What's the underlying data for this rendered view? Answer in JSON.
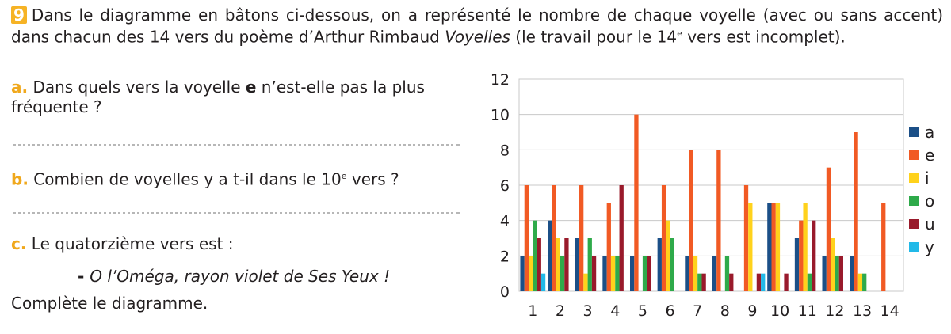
{
  "exercise": {
    "number": "9",
    "intro_before": "Dans le diagramme en bâtons ci-dessous, on a représenté le nombre de chaque voyelle (avec ou sans accent) dans chacun des 14 vers du poème d’Arthur Rimbaud ",
    "intro_title": "Voyelles",
    "intro_middle": " (le travail pour le 14",
    "intro_sup": "e",
    "intro_after": " vers est incomplet).",
    "q_a_letter": "a.",
    "q_a_before": " Dans quels vers la voyelle ",
    "q_a_bold": "e",
    "q_a_after": " n’est-elle pas la plus fréquente ?",
    "q_b_letter": "b.",
    "q_b_before": " Combien de voyelles y a t-il dans le 10",
    "q_b_sup": "e",
    "q_b_after": " vers ?",
    "q_c_letter": "c.",
    "q_c_text": " Le quatorzième vers est :",
    "verse_dash": "- ",
    "verse": "O l’Oméga, rayon violet de Ses Yeux !",
    "final": "Complète le diagramme."
  },
  "chart_data": {
    "type": "bar",
    "categories": [
      "1",
      "2",
      "3",
      "4",
      "5",
      "6",
      "7",
      "8",
      "9",
      "10",
      "11",
      "12",
      "13",
      "14"
    ],
    "series": [
      {
        "name": "a",
        "color": "#1b4f87",
        "values": [
          2,
          4,
          3,
          2,
          2,
          3,
          2,
          2,
          0,
          5,
          3,
          2,
          2,
          0
        ]
      },
      {
        "name": "e",
        "color": "#f15a24",
        "values": [
          6,
          6,
          6,
          5,
          10,
          6,
          8,
          8,
          6,
          5,
          4,
          7,
          9,
          5
        ]
      },
      {
        "name": "i",
        "color": "#ffd21c",
        "values": [
          2,
          3,
          1,
          2,
          0,
          4,
          2,
          0,
          5,
          5,
          5,
          3,
          1,
          0
        ]
      },
      {
        "name": "o",
        "color": "#2eaa4a",
        "values": [
          4,
          2,
          3,
          2,
          2,
          3,
          1,
          2,
          0,
          0,
          1,
          2,
          1,
          0
        ]
      },
      {
        "name": "u",
        "color": "#991a2b",
        "values": [
          3,
          3,
          2,
          6,
          2,
          0,
          1,
          1,
          1,
          1,
          4,
          2,
          0,
          0
        ]
      },
      {
        "name": "y",
        "color": "#22b9e8",
        "values": [
          1,
          0,
          0,
          0,
          0,
          0,
          0,
          0,
          1,
          0,
          0,
          0,
          0,
          0
        ]
      }
    ],
    "yticks": [
      "0",
      "2",
      "4",
      "6",
      "8",
      "10",
      "12"
    ],
    "ylim": [
      0,
      12
    ],
    "grid": true,
    "legend_position": "right"
  }
}
